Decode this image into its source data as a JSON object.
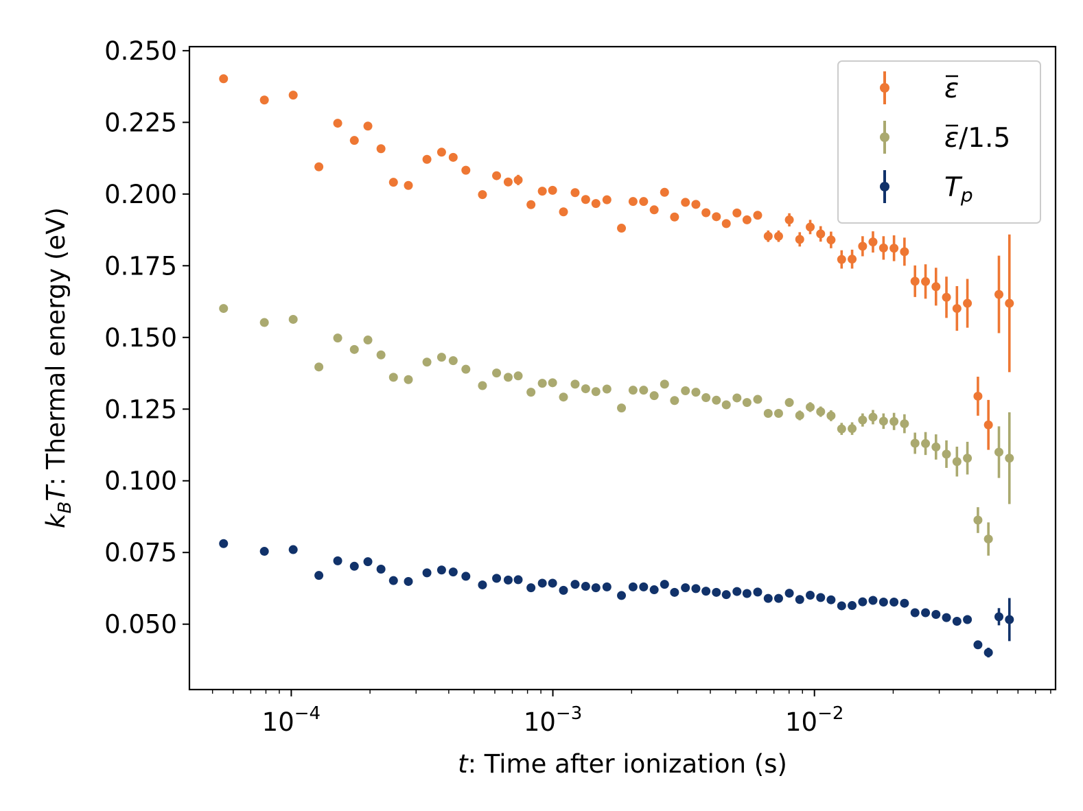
{
  "chart_data": {
    "type": "scatter",
    "title": "",
    "xlabel_var": "t",
    "xlabel_text": ": Time after ionization (s)",
    "ylabel_k": "k",
    "ylabel_sub": "B",
    "ylabel_T": "T",
    "ylabel_text": ": Thermal energy (eV)",
    "xscale": "log",
    "xlim": [
      4.08e-05,
      0.0835
    ],
    "ylim": [
      0.0272,
      0.2514
    ],
    "yticks": [
      0.05,
      0.075,
      0.1,
      0.125,
      0.15,
      0.175,
      0.2,
      0.225,
      0.25
    ],
    "ytick_labels": [
      "0.050",
      "0.075",
      "0.100",
      "0.125",
      "0.150",
      "0.175",
      "0.200",
      "0.225",
      "0.250"
    ],
    "xticks": [
      0.0001,
      0.001,
      0.01
    ],
    "xtick_base": "10",
    "xtick_exps": [
      "−4",
      "−3",
      "−2"
    ],
    "legend_position": "top-right",
    "x": [
      5.51e-05,
      7.89e-05,
      0.0001017,
      0.0001275,
      0.0001505,
      0.0001742,
      0.0001963,
      0.0002203,
      0.0002458,
      0.0002803,
      0.0003301,
      0.0003755,
      0.0004159,
      0.000465,
      0.0005381,
      0.0006094,
      0.0006748,
      0.000737,
      0.0008248,
      0.0009112,
      0.0009975,
      0.0010979,
      0.0012163,
      0.0013348,
      0.0014607,
      0.0016092,
      0.0018294,
      0.0020254,
      0.0022234,
      0.0024395,
      0.0026729,
      0.0029188,
      0.0032118,
      0.0035216,
      0.0038495,
      0.0042177,
      0.0046021,
      0.0050557,
      0.0055216,
      0.0060666,
      0.0066547,
      0.0072936,
      0.0080155,
      0.0087856,
      0.0096339,
      0.0105624,
      0.011573,
      0.0127024,
      0.0139309,
      0.0152801,
      0.0167398,
      0.0183692,
      0.0201442,
      0.0220878,
      0.0242326,
      0.0265855,
      0.0291477,
      0.0319599,
      0.0350564,
      0.0384388,
      0.0421687,
      0.0462378,
      0.0507264,
      0.0556294
    ],
    "series": [
      {
        "name": "ε̄",
        "legend_symbol": "ε",
        "legend_suffix": "",
        "color": "#ee7733",
        "values": [
          0.2402,
          0.2328,
          0.2345,
          0.2095,
          0.2247,
          0.2187,
          0.2237,
          0.2158,
          0.2041,
          0.203,
          0.2121,
          0.2146,
          0.2128,
          0.2083,
          0.1998,
          0.2064,
          0.2042,
          0.2049,
          0.1963,
          0.201,
          0.2013,
          0.1938,
          0.2005,
          0.1981,
          0.1967,
          0.198,
          0.1881,
          0.1974,
          0.1974,
          0.1945,
          0.2006,
          0.192,
          0.1971,
          0.1964,
          0.1935,
          0.1921,
          0.1897,
          0.1934,
          0.191,
          0.1926,
          0.1853,
          0.1853,
          0.191,
          0.1842,
          0.1885,
          0.1861,
          0.184,
          0.1772,
          0.1773,
          0.1818,
          0.1833,
          0.1812,
          0.1811,
          0.1799,
          0.1696,
          0.1695,
          0.1677,
          0.164,
          0.1601,
          0.1619,
          0.1295,
          0.1195,
          0.165,
          0.1619
        ],
        "errors": [
          0,
          0,
          0,
          0,
          0,
          0,
          0,
          0,
          0,
          0,
          0,
          0,
          0,
          0,
          0,
          0,
          0,
          0.0018,
          0,
          0,
          0,
          0,
          0,
          0,
          0,
          0,
          0,
          0,
          0,
          0,
          0,
          0,
          0,
          0,
          0,
          0,
          0,
          0,
          0,
          0,
          0.002,
          0.002,
          0.0023,
          0.0025,
          0.0025,
          0.0027,
          0.0029,
          0.0032,
          0.0033,
          0.0035,
          0.0037,
          0.0041,
          0.0045,
          0.0049,
          0.0055,
          0.006,
          0.0066,
          0.0072,
          0.0078,
          0.0085,
          0.0068,
          0.0087,
          0.0135,
          0.024
        ]
      },
      {
        "name": "ε̄/1.5",
        "legend_symbol": "ε",
        "legend_suffix": "/1.5",
        "color": "#aaa96f",
        "values": [
          0.1601,
          0.1552,
          0.1563,
          0.1397,
          0.1498,
          0.1458,
          0.1491,
          0.1439,
          0.1361,
          0.1353,
          0.1414,
          0.1431,
          0.1419,
          0.1389,
          0.1332,
          0.1376,
          0.1361,
          0.1366,
          0.1309,
          0.134,
          0.1342,
          0.1292,
          0.1337,
          0.1321,
          0.1311,
          0.132,
          0.1254,
          0.1316,
          0.1316,
          0.1297,
          0.1337,
          0.128,
          0.1314,
          0.1309,
          0.129,
          0.1281,
          0.1265,
          0.1289,
          0.1273,
          0.1284,
          0.1235,
          0.1235,
          0.1273,
          0.1228,
          0.1257,
          0.1241,
          0.1227,
          0.1181,
          0.1182,
          0.1212,
          0.1222,
          0.1208,
          0.1207,
          0.1199,
          0.1131,
          0.113,
          0.1118,
          0.1093,
          0.1067,
          0.1079,
          0.0863,
          0.0797,
          0.11,
          0.1079
        ],
        "errors": [
          0,
          0,
          0,
          0,
          0,
          0,
          0,
          0,
          0,
          0,
          0,
          0,
          0,
          0,
          0,
          0,
          0,
          0.0012,
          0,
          0,
          0,
          0,
          0,
          0,
          0,
          0,
          0,
          0,
          0,
          0,
          0,
          0,
          0,
          0,
          0,
          0,
          0,
          0,
          0,
          0,
          0.0013,
          0.0013,
          0.0015,
          0.0017,
          0.0017,
          0.0018,
          0.0019,
          0.0021,
          0.0022,
          0.0023,
          0.0025,
          0.0027,
          0.003,
          0.0033,
          0.0037,
          0.004,
          0.0044,
          0.0048,
          0.0052,
          0.0057,
          0.0045,
          0.0058,
          0.009,
          0.016
        ]
      },
      {
        "name": "Tp",
        "legend_symbol": "T",
        "legend_suffix": "p",
        "color": "#11326a",
        "values": [
          0.0781,
          0.0754,
          0.076,
          0.067,
          0.0721,
          0.0702,
          0.0718,
          0.0692,
          0.0652,
          0.0649,
          0.0679,
          0.0689,
          0.0682,
          0.0667,
          0.0637,
          0.066,
          0.0654,
          0.0655,
          0.0627,
          0.0643,
          0.0643,
          0.0618,
          0.0639,
          0.0632,
          0.0627,
          0.063,
          0.06,
          0.063,
          0.063,
          0.062,
          0.0639,
          0.0611,
          0.0627,
          0.0624,
          0.0615,
          0.0611,
          0.0603,
          0.0614,
          0.0607,
          0.0612,
          0.059,
          0.059,
          0.0608,
          0.0586,
          0.0601,
          0.0593,
          0.0585,
          0.0564,
          0.0565,
          0.0578,
          0.0583,
          0.0577,
          0.0577,
          0.0573,
          0.054,
          0.054,
          0.0534,
          0.0523,
          0.051,
          0.0516,
          0.0428,
          0.0401,
          0.0526,
          0.0516
        ],
        "errors": [
          0,
          0,
          0,
          0,
          0,
          0,
          0,
          0,
          0,
          0,
          0,
          0,
          0,
          0,
          0,
          0,
          0,
          0,
          0,
          0,
          0,
          0,
          0,
          0,
          0,
          0,
          0,
          0,
          0,
          0,
          0,
          0,
          0,
          0,
          0,
          0,
          0,
          0,
          0,
          0,
          0,
          0,
          0,
          0,
          0,
          0,
          0,
          0,
          0,
          0,
          0,
          0,
          0,
          0,
          0,
          0,
          0,
          0,
          0,
          0.0015,
          0.001,
          0.0017,
          0.003,
          0.0075
        ]
      }
    ]
  }
}
